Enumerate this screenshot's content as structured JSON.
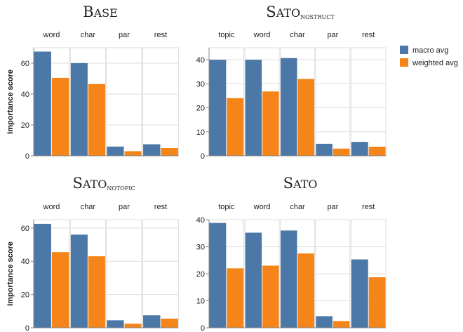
{
  "chart_data": {
    "type": "bar",
    "ylabel": "Importance score",
    "legend": {
      "placement": "right",
      "entries": [
        {
          "name": "macro avg",
          "color": "#4c78a8"
        },
        {
          "name": "weighted avg",
          "color": "#f58518"
        }
      ]
    },
    "panels": [
      {
        "title_main": "B",
        "title_small": "ASE",
        "ylim": [
          0,
          70
        ],
        "yticks": [
          0,
          20,
          40,
          60
        ],
        "categories": [
          "word",
          "char",
          "par",
          "rest"
        ],
        "series": [
          {
            "name": "macro avg",
            "values": [
              67.5,
              60,
              6,
              7.5
            ]
          },
          {
            "name": "weighted avg",
            "values": [
              50.5,
              46.5,
              3,
              5
            ]
          }
        ]
      },
      {
        "title_main": "S",
        "title_small": "ATO",
        "subscript": "noStruct",
        "ylim": [
          0,
          45
        ],
        "yticks": [
          0,
          10,
          20,
          30,
          40
        ],
        "categories": [
          "topic",
          "word",
          "char",
          "par",
          "rest"
        ],
        "series": [
          {
            "name": "macro avg",
            "values": [
              40,
              40,
              40.7,
              5,
              5.8
            ]
          },
          {
            "name": "weighted avg",
            "values": [
              24,
              26.8,
              32,
              3,
              3.8
            ]
          }
        ]
      },
      {
        "title_main": "S",
        "title_small": "ATO",
        "subscript": "noTopic",
        "ylim": [
          0,
          65
        ],
        "yticks": [
          0,
          20,
          40,
          60
        ],
        "categories": [
          "word",
          "char",
          "par",
          "rest"
        ],
        "series": [
          {
            "name": "macro avg",
            "values": [
              62.5,
              56,
              4.5,
              7.5
            ]
          },
          {
            "name": "weighted avg",
            "values": [
              45.5,
              43,
              2.5,
              5.5
            ]
          }
        ]
      },
      {
        "title_main": "S",
        "title_small": "ATO",
        "ylim": [
          0,
          40
        ],
        "yticks": [
          0,
          10,
          20,
          30,
          40
        ],
        "categories": [
          "topic",
          "word",
          "char",
          "par",
          "rest"
        ],
        "series": [
          {
            "name": "macro avg",
            "values": [
              38.8,
              35.2,
              36,
              4.3,
              25.3
            ]
          },
          {
            "name": "weighted avg",
            "values": [
              22,
              23,
              27.5,
              2.5,
              18.7
            ]
          }
        ]
      }
    ]
  }
}
